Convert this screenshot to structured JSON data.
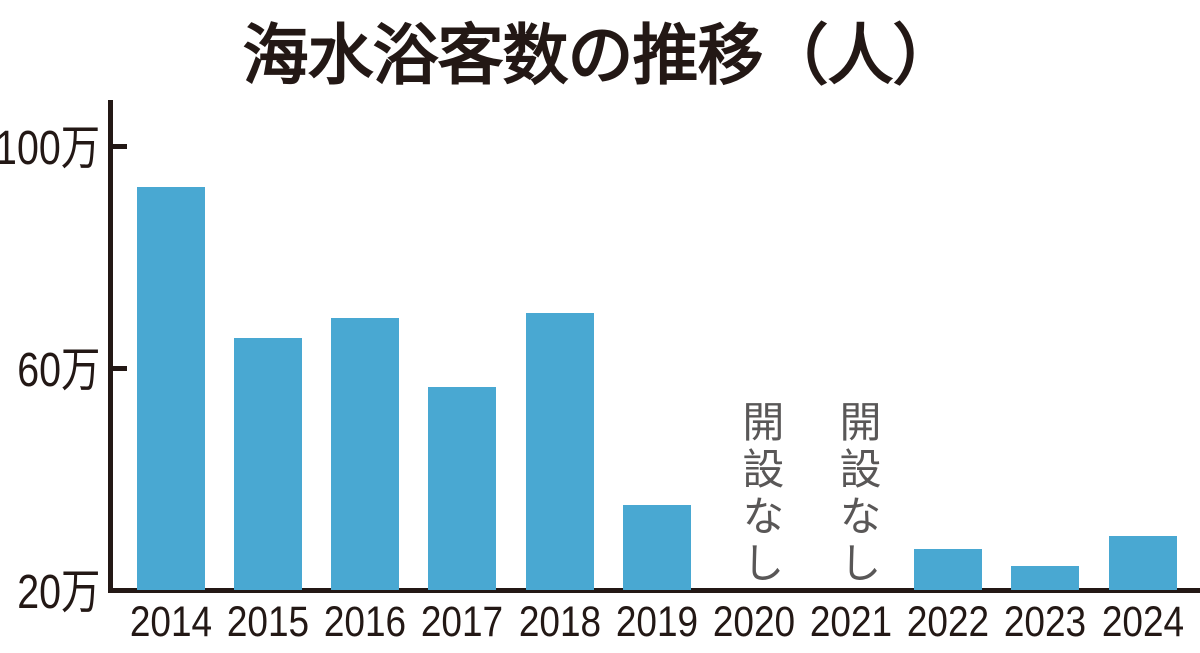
{
  "chart_data": {
    "type": "bar",
    "title": "海水浴客数の推移（人）",
    "unit": "万人 (10,000 people)",
    "categories": [
      "2014",
      "2015",
      "2016",
      "2017",
      "2018",
      "2019",
      "2020",
      "2021",
      "2022",
      "2023",
      "2024"
    ],
    "values": [
      92.5,
      65.3,
      68.9,
      56.6,
      69.8,
      35.3,
      null,
      null,
      27.4,
      24.3,
      29.7
    ],
    "no_data_label": "開設なし",
    "no_data_years": [
      "2020",
      "2021"
    ],
    "yticks": [
      {
        "value": 20,
        "label": "20万"
      },
      {
        "value": 60,
        "label": "60万"
      },
      {
        "value": 100,
        "label": "100万"
      }
    ],
    "axis_min": 20,
    "ylim": [
      20,
      108
    ],
    "xlabel": "",
    "ylabel": "",
    "grid": false,
    "legend": "none",
    "colors": {
      "bar": "#49A8D2",
      "text": "#231815",
      "annotation": "#595757",
      "background": "#FFFFFF"
    }
  }
}
